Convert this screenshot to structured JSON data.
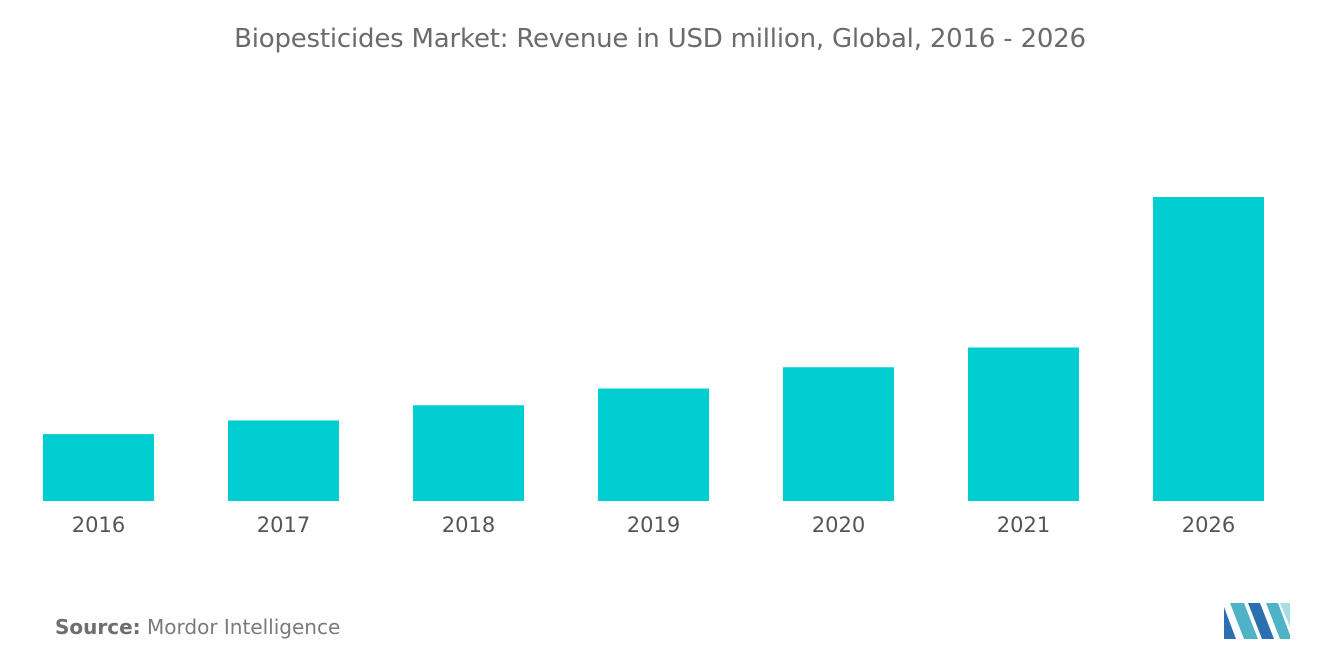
{
  "chart_data": {
    "type": "bar",
    "title": "Biopesticides Market: Revenue in USD million, Global, 2016 - 2026",
    "categories": [
      "2016",
      "2017",
      "2018",
      "2019",
      "2020",
      "2021",
      "2026"
    ],
    "values": [
      2.2,
      2.65,
      3.15,
      3.7,
      4.4,
      5.05,
      10.0
    ],
    "ylim": [
      0,
      10.0
    ],
    "xlabel": "",
    "ylabel": "",
    "grid": false,
    "legend": "none",
    "bar_color": "#00ced1"
  },
  "source": {
    "label": "Source:",
    "text": "Mordor Intelligence"
  },
  "logo": {
    "icon": "mordor-intelligence-logo-icon",
    "colors": [
      "#2a6fb0",
      "#4fb3c8",
      "#a9dde6"
    ]
  }
}
